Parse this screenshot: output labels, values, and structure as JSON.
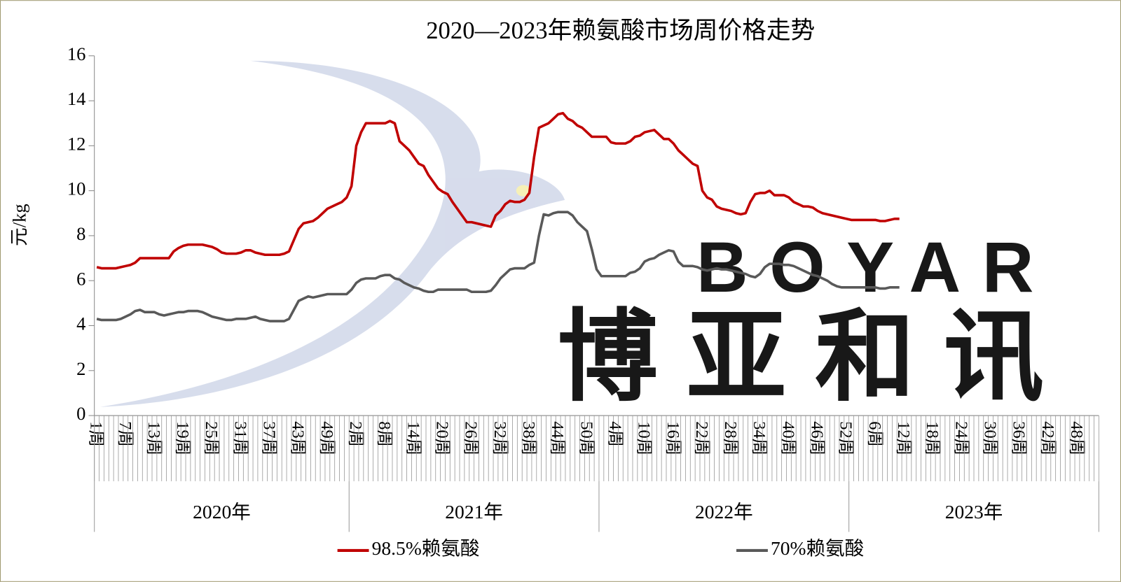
{
  "chart_data": {
    "type": "line",
    "title": "2020—2023年赖氨酸市场周价格走势",
    "y_label": "元/kg",
    "watermark": {
      "text": "BOYAR",
      "subtext": "博亚和讯"
    },
    "categories": [
      "1周",
      null,
      null,
      null,
      null,
      null,
      "7周",
      null,
      null,
      null,
      null,
      null,
      "13周",
      null,
      null,
      null,
      null,
      null,
      "19周",
      null,
      null,
      null,
      null,
      null,
      "25周",
      null,
      null,
      null,
      null,
      null,
      "31周",
      null,
      null,
      null,
      null,
      null,
      "37周",
      null,
      null,
      null,
      null,
      null,
      "43周",
      null,
      null,
      null,
      null,
      null,
      "49周",
      null,
      null,
      null,
      null,
      null,
      "2周",
      null,
      null,
      null,
      null,
      null,
      "8周",
      null,
      null,
      null,
      null,
      null,
      "14周",
      null,
      null,
      null,
      null,
      null,
      "20周",
      null,
      null,
      null,
      null,
      null,
      "26周",
      null,
      null,
      null,
      null,
      null,
      "32周",
      null,
      null,
      null,
      null,
      null,
      "38周",
      null,
      null,
      null,
      null,
      null,
      "44周",
      null,
      null,
      null,
      null,
      null,
      "50周",
      null,
      null,
      null,
      null,
      null,
      "4周",
      null,
      null,
      null,
      null,
      null,
      "10周",
      null,
      null,
      null,
      null,
      null,
      "16周",
      null,
      null,
      null,
      null,
      null,
      "22周",
      null,
      null,
      null,
      null,
      null,
      "28周",
      null,
      null,
      null,
      null,
      null,
      "34周",
      null,
      null,
      null,
      null,
      null,
      "40周",
      null,
      null,
      null,
      null,
      null,
      "46周",
      null,
      null,
      null,
      null,
      null,
      "52周",
      null,
      null,
      null,
      null,
      null,
      "6周",
      null,
      null,
      null,
      null,
      null,
      "12周",
      null,
      null,
      null,
      null,
      null,
      "18周",
      null,
      null,
      null,
      null,
      null,
      "24周",
      null,
      null,
      null,
      null,
      null,
      "30周",
      null,
      null,
      null,
      null,
      null,
      "36周",
      null,
      null,
      null,
      null,
      null,
      "42周",
      null,
      null,
      null,
      null,
      null,
      "48周",
      null,
      null,
      null,
      null
    ],
    "groups": [
      {
        "name": "2020年",
        "size": 53
      },
      {
        "name": "2021年",
        "size": 52
      },
      {
        "name": "2022年",
        "size": 52
      },
      {
        "name": "2023年",
        "size": 52
      }
    ],
    "series": [
      {
        "name": "98.5%赖氨酸",
        "color": "#c00000",
        "values": [
          6.6,
          6.55,
          6.55,
          6.55,
          6.55,
          6.6,
          6.65,
          6.7,
          6.8,
          7.0,
          7.0,
          7.0,
          7.0,
          7.0,
          7.0,
          7.0,
          7.3,
          7.45,
          7.55,
          7.6,
          7.6,
          7.6,
          7.6,
          7.55,
          7.5,
          7.4,
          7.25,
          7.2,
          7.2,
          7.2,
          7.25,
          7.35,
          7.35,
          7.25,
          7.2,
          7.15,
          7.15,
          7.15,
          7.15,
          7.2,
          7.3,
          7.8,
          8.3,
          8.55,
          8.6,
          8.65,
          8.8,
          9.0,
          9.2,
          9.3,
          9.4,
          9.5,
          9.7,
          10.2,
          12.0,
          12.6,
          13.0,
          13.0,
          13.0,
          13.0,
          13.0,
          13.1,
          13.0,
          12.2,
          12.0,
          11.8,
          11.5,
          11.2,
          11.1,
          10.7,
          10.4,
          10.1,
          9.95,
          9.85,
          9.5,
          9.2,
          8.9,
          8.6,
          8.6,
          8.55,
          8.5,
          8.45,
          8.4,
          8.9,
          9.1,
          9.4,
          9.55,
          9.5,
          9.5,
          9.6,
          9.9,
          11.5,
          12.8,
          12.9,
          13.0,
          13.2,
          13.4,
          13.45,
          13.2,
          13.1,
          12.9,
          12.8,
          12.6,
          12.4,
          12.4,
          12.4,
          12.4,
          12.15,
          12.1,
          12.1,
          12.1,
          12.2,
          12.4,
          12.45,
          12.6,
          12.65,
          12.7,
          12.5,
          12.3,
          12.3,
          12.1,
          11.8,
          11.6,
          11.4,
          11.2,
          11.1,
          10.0,
          9.7,
          9.6,
          9.3,
          9.2,
          9.15,
          9.1,
          9.0,
          8.95,
          9.0,
          9.5,
          9.85,
          9.9,
          9.9,
          10.0,
          9.8,
          9.8,
          9.8,
          9.7,
          9.5,
          9.4,
          9.3,
          9.3,
          9.25,
          9.1,
          9.0,
          8.95,
          8.9,
          8.85,
          8.8,
          8.75,
          8.7,
          8.7,
          8.7,
          8.7,
          8.7,
          8.7,
          8.65,
          8.65,
          8.7,
          8.75,
          8.75,
          null,
          null,
          null,
          null,
          null,
          null,
          null,
          null,
          null,
          null,
          null,
          null,
          null,
          null,
          null,
          null,
          null,
          null,
          null,
          null,
          null,
          null,
          null,
          null,
          null,
          null,
          null,
          null,
          null,
          null,
          null,
          null,
          null,
          null,
          null,
          null,
          null,
          null,
          null,
          null,
          null
        ]
      },
      {
        "name": "70%赖氨酸",
        "color": "#595959",
        "values": [
          4.3,
          4.25,
          4.25,
          4.25,
          4.25,
          4.3,
          4.4,
          4.5,
          4.65,
          4.7,
          4.6,
          4.6,
          4.6,
          4.5,
          4.45,
          4.5,
          4.55,
          4.6,
          4.6,
          4.65,
          4.65,
          4.65,
          4.6,
          4.5,
          4.4,
          4.35,
          4.3,
          4.25,
          4.25,
          4.3,
          4.3,
          4.3,
          4.35,
          4.4,
          4.3,
          4.25,
          4.2,
          4.2,
          4.2,
          4.2,
          4.3,
          4.7,
          5.1,
          5.2,
          5.3,
          5.25,
          5.3,
          5.35,
          5.4,
          5.4,
          5.4,
          5.4,
          5.4,
          5.6,
          5.9,
          6.05,
          6.1,
          6.1,
          6.1,
          6.2,
          6.25,
          6.25,
          6.1,
          6.05,
          5.9,
          5.8,
          5.7,
          5.65,
          5.55,
          5.5,
          5.5,
          5.6,
          5.6,
          5.6,
          5.6,
          5.6,
          5.6,
          5.6,
          5.5,
          5.5,
          5.5,
          5.5,
          5.55,
          5.8,
          6.1,
          6.3,
          6.5,
          6.55,
          6.55,
          6.55,
          6.7,
          6.8,
          8.0,
          8.95,
          8.9,
          9.0,
          9.05,
          9.05,
          9.05,
          8.9,
          8.6,
          8.4,
          8.2,
          7.4,
          6.5,
          6.2,
          6.2,
          6.2,
          6.2,
          6.2,
          6.2,
          6.35,
          6.4,
          6.55,
          6.85,
          6.95,
          7.0,
          7.15,
          7.25,
          7.35,
          7.3,
          6.85,
          6.65,
          6.65,
          6.65,
          6.6,
          6.5,
          6.45,
          6.5,
          6.55,
          6.5,
          6.5,
          6.45,
          6.4,
          6.35,
          6.3,
          6.2,
          6.15,
          6.3,
          6.6,
          6.75,
          6.75,
          6.75,
          6.7,
          6.7,
          6.65,
          6.55,
          6.45,
          6.35,
          6.25,
          6.2,
          6.1,
          6.0,
          5.85,
          5.75,
          5.7,
          5.7,
          5.7,
          5.7,
          5.7,
          5.7,
          5.7,
          5.7,
          5.65,
          5.65,
          5.7,
          5.7,
          5.7,
          null,
          null,
          null,
          null,
          null,
          null,
          null,
          null,
          null,
          null,
          null,
          null,
          null,
          null,
          null,
          null,
          null,
          null,
          null,
          null,
          null,
          null,
          null,
          null,
          null,
          null,
          null,
          null,
          null,
          null,
          null,
          null,
          null,
          null,
          null,
          null,
          null,
          null,
          null,
          null,
          null
        ]
      }
    ],
    "ylim": [
      0,
      16
    ],
    "yticks": [
      0,
      2,
      4,
      6,
      8,
      10,
      12,
      14,
      16
    ],
    "grid": false,
    "legend": "bottom"
  }
}
